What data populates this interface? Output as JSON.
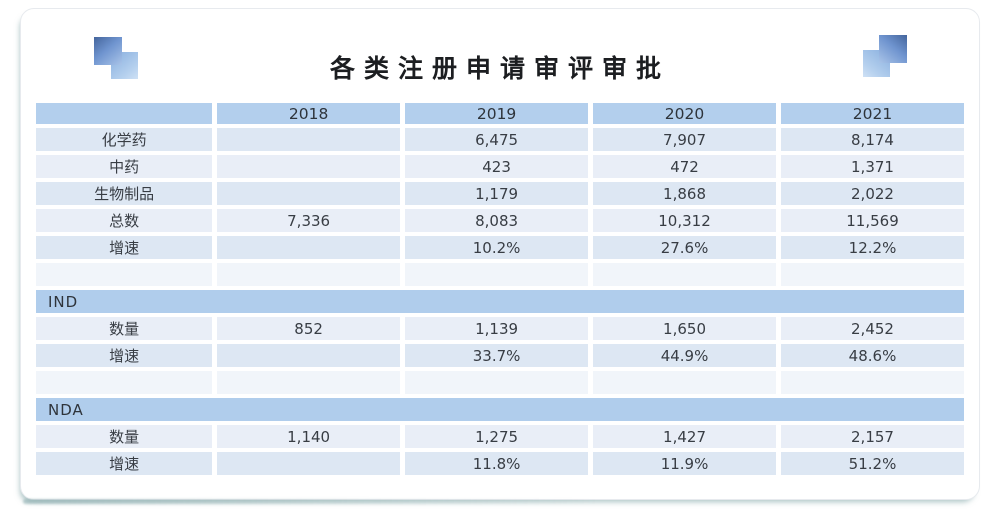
{
  "title": "各类注册申请审评审批",
  "icons": {
    "left": "overlapping-squares-icon",
    "right": "overlapping-squares-icon"
  },
  "colors": {
    "header_bg": "#b3cfed",
    "section_header_bg": "#b0cdec",
    "band_blue": "#dde7f3",
    "band_light": "#e9eef7",
    "spacer_row": "#f1f5fa",
    "square_dark": "#44659c",
    "square_light": "#a9c6e9",
    "card_shadow": "#68949680"
  },
  "table": {
    "columns": [
      "",
      "2018",
      "2019",
      "2020",
      "2021"
    ],
    "summary": {
      "rows": [
        {
          "label": "化学药",
          "values": [
            "",
            "6,475",
            "7,907",
            "8,174"
          ]
        },
        {
          "label": "中药",
          "values": [
            "",
            "423",
            "472",
            "1,371"
          ]
        },
        {
          "label": "生物制品",
          "values": [
            "",
            "1,179",
            "1,868",
            "2,022"
          ]
        },
        {
          "label": "总数",
          "values": [
            "7,336",
            "8,083",
            "10,312",
            "11,569"
          ]
        },
        {
          "label": "增速",
          "values": [
            "",
            "10.2%",
            "27.6%",
            "12.2%"
          ]
        }
      ]
    },
    "ind": {
      "header": "IND",
      "rows": [
        {
          "label": "数量",
          "values": [
            "852",
            "1,139",
            "1,650",
            "2,452"
          ]
        },
        {
          "label": "增速",
          "values": [
            "",
            "33.7%",
            "44.9%",
            "48.6%"
          ]
        }
      ]
    },
    "nda": {
      "header": "NDA",
      "rows": [
        {
          "label": "数量",
          "values": [
            "1,140",
            "1,275",
            "1,427",
            "2,157"
          ]
        },
        {
          "label": "增速",
          "values": [
            "",
            "11.8%",
            "11.9%",
            "51.2%"
          ]
        }
      ]
    }
  },
  "chart_data": {
    "type": "table",
    "title": "各类注册申请审评审批",
    "columns": [
      "2018",
      "2019",
      "2020",
      "2021"
    ],
    "rows": [
      {
        "label": "化学药",
        "values": [
          null,
          6475,
          7907,
          8174
        ]
      },
      {
        "label": "中药",
        "values": [
          null,
          423,
          472,
          1371
        ]
      },
      {
        "label": "生物制品",
        "values": [
          null,
          1179,
          1868,
          2022
        ]
      },
      {
        "label": "总数",
        "values": [
          7336,
          8083,
          10312,
          11569
        ]
      },
      {
        "label": "增速",
        "values": [
          null,
          "10.2%",
          "27.6%",
          "12.2%"
        ]
      },
      {
        "label": "IND 数量",
        "values": [
          852,
          1139,
          1650,
          2452
        ]
      },
      {
        "label": "IND 增速",
        "values": [
          null,
          "33.7%",
          "44.9%",
          "48.6%"
        ]
      },
      {
        "label": "NDA 数量",
        "values": [
          1140,
          1275,
          1427,
          2157
        ]
      },
      {
        "label": "NDA 增速",
        "values": [
          null,
          "11.8%",
          "11.9%",
          "51.2%"
        ]
      }
    ]
  }
}
